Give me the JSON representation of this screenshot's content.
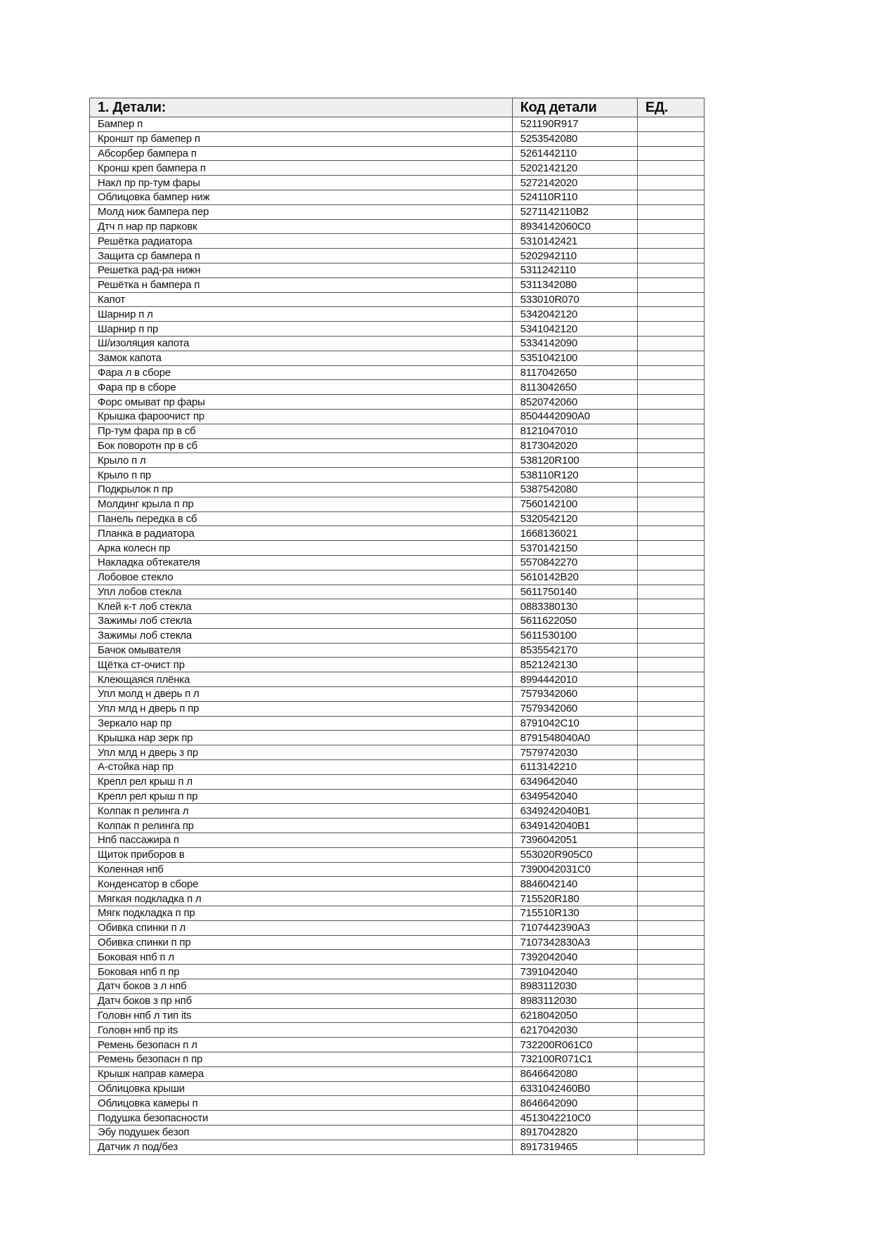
{
  "table": {
    "headers": [
      "1. Детали:",
      "Код детали",
      "ЕД."
    ],
    "rows": [
      [
        "Бампер п",
        "521190R917",
        ""
      ],
      [
        "Кроншт пр бамепер п",
        "5253542080",
        ""
      ],
      [
        "Абсорбер бампера п",
        "5261442110",
        ""
      ],
      [
        "Кронш креп бампера п",
        "5202142120",
        ""
      ],
      [
        "Накл пр пр-тум фары",
        "5272142020",
        ""
      ],
      [
        "Облицовка бампер ниж",
        "524110R110",
        ""
      ],
      [
        "Молд ниж бампера пер",
        "5271142110B2",
        ""
      ],
      [
        "Дтч п нар пр парковк",
        "8934142060C0",
        ""
      ],
      [
        "Решётка радиатора",
        "5310142421",
        ""
      ],
      [
        "Защита ср бампера п",
        "5202942110",
        ""
      ],
      [
        "Решетка рад-ра нижн",
        "5311242110",
        ""
      ],
      [
        "Решётка н бампера п",
        "5311342080",
        ""
      ],
      [
        "Капот",
        "533010R070",
        ""
      ],
      [
        "Шарнир п л",
        "5342042120",
        ""
      ],
      [
        "Шарнир  п пр",
        "5341042120",
        ""
      ],
      [
        "Ш/изоляция капота",
        "5334142090",
        ""
      ],
      [
        "Замок капота",
        "5351042100",
        ""
      ],
      [
        "Фара л в сборе",
        "8117042650",
        ""
      ],
      [
        "Фара пр в сборе",
        "8113042650",
        ""
      ],
      [
        "Форс омыват пр фары",
        "8520742060",
        ""
      ],
      [
        "Крышка фароочист пр",
        "8504442090A0",
        ""
      ],
      [
        "Пр-тум фара пр в сб",
        "8121047010",
        ""
      ],
      [
        "Бок поворотн пр в сб",
        "8173042020",
        ""
      ],
      [
        "Крыло п л",
        "538120R100",
        ""
      ],
      [
        "Крыло п пр",
        "538110R120",
        ""
      ],
      [
        "Подкрылок п пр",
        "5387542080",
        ""
      ],
      [
        "Молдинг крыла п пр",
        "7560142100",
        ""
      ],
      [
        "Панель передка в сб",
        "5320542120",
        ""
      ],
      [
        "Планка в радиатора",
        "1668136021",
        ""
      ],
      [
        "Арка колесн пр",
        "5370142150",
        ""
      ],
      [
        "Накладка обтекателя",
        "5570842270",
        ""
      ],
      [
        "Лобовое стекло",
        "5610142B20",
        ""
      ],
      [
        "Упл лобов стекла",
        "5611750140",
        ""
      ],
      [
        "Клей к-т лоб стекла",
        "0883380130",
        ""
      ],
      [
        "Зажимы лоб стекла",
        "5611622050",
        ""
      ],
      [
        "Зажимы лоб стекла",
        "5611530100",
        ""
      ],
      [
        "Бачок омывателя",
        "8535542170",
        ""
      ],
      [
        "Щётка ст-очист пр",
        "8521242130",
        ""
      ],
      [
        "Клеющаяся плёнка",
        "8994442010",
        ""
      ],
      [
        "Упл молд н дверь п л",
        "7579342060",
        ""
      ],
      [
        "Упл млд н дверь п пр",
        "7579342060",
        ""
      ],
      [
        "Зеркало нар пр",
        "8791042C10",
        ""
      ],
      [
        "Крышка нар зерк пр",
        "8791548040A0",
        ""
      ],
      [
        "Упл млд н дверь з пр",
        "7579742030",
        ""
      ],
      [
        "А-стойка нар пр",
        "6113142210",
        ""
      ],
      [
        "Крепл рел крыш п л",
        "6349642040",
        ""
      ],
      [
        "Крепл рел крыш п пр",
        "6349542040",
        ""
      ],
      [
        "Колпак п релинга л",
        "6349242040B1",
        ""
      ],
      [
        "Колпак п релинга пр",
        "6349142040B1",
        ""
      ],
      [
        "Нпб пассажира п",
        "7396042051",
        ""
      ],
      [
        "Щиток приборов в",
        "553020R905C0",
        ""
      ],
      [
        "Коленная нпб",
        "7390042031C0",
        ""
      ],
      [
        "Конденсатор в сборе",
        "8846042140",
        ""
      ],
      [
        "Мягкая подкладка п л",
        "715520R180",
        ""
      ],
      [
        "Мягк подкладка п пр",
        "715510R130",
        ""
      ],
      [
        "Обивка спинки  п л",
        "7107442390A3",
        ""
      ],
      [
        "Обивка спинки  п пр",
        "7107342830A3",
        ""
      ],
      [
        "Боковая нпб п л",
        "7392042040",
        ""
      ],
      [
        "Боковая нпб п пр",
        "7391042040",
        ""
      ],
      [
        "Датч боков з л нпб",
        "8983112030",
        ""
      ],
      [
        "Датч боков з пр нпб",
        "8983112030",
        ""
      ],
      [
        "Головн нпб л тип its",
        "6218042050",
        ""
      ],
      [
        "Головн нпб пр its",
        "6217042030",
        ""
      ],
      [
        "Ремень безопасн п л",
        "732200R061C0",
        ""
      ],
      [
        "Ремень безопасн п пр",
        "732100R071C1",
        ""
      ],
      [
        "Крышк направ камера",
        "8646642080",
        ""
      ],
      [
        "Облицовка крыши",
        "6331042460B0",
        ""
      ],
      [
        "Облицовка камеры п",
        "8646642090",
        ""
      ],
      [
        "Подушка безопасности",
        "4513042210C0",
        ""
      ],
      [
        "Эбу подушек безоп",
        "8917042820",
        ""
      ],
      [
        "Датчик л под/без",
        "8917319465",
        ""
      ]
    ]
  },
  "colors": {
    "header_bg": "#efefef",
    "border": "#555555"
  }
}
